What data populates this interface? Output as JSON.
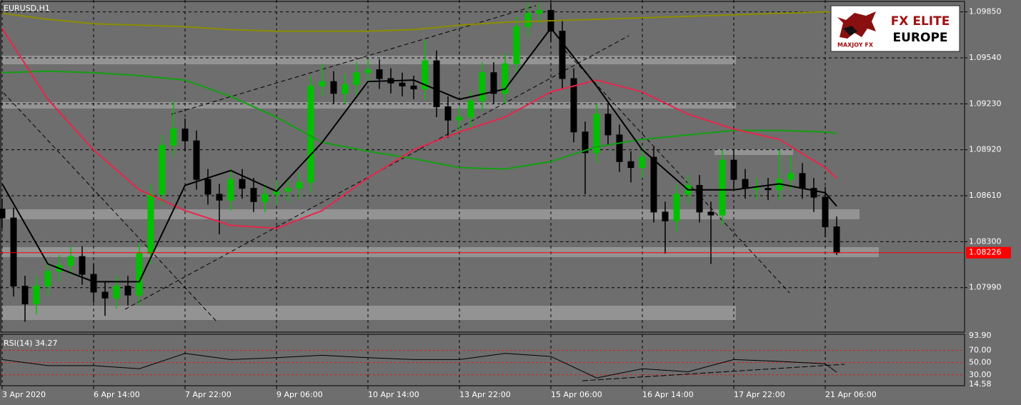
{
  "chart_data": {
    "type": "candlestick",
    "title": "EURUSD,H1",
    "background": "#6e6e6e",
    "xlim": [
      -0.75,
      336.75
    ],
    "xticks": [
      {
        "value": 0,
        "label": "3 Apr 2020"
      },
      {
        "value": 32,
        "label": "6 Apr 14:00"
      },
      {
        "value": 64,
        "label": "7 Apr 22:00"
      },
      {
        "value": 96,
        "label": "9 Apr 06:00"
      },
      {
        "value": 128,
        "label": "10 Apr 14:00"
      },
      {
        "value": 160,
        "label": "13 Apr 22:00"
      },
      {
        "value": 192,
        "label": "15 Apr 06:00"
      },
      {
        "value": 224,
        "label": "16 Apr 14:00"
      },
      {
        "value": 256,
        "label": "17 Apr 22:00"
      },
      {
        "value": 288,
        "label": "21 Apr 06:00"
      }
    ],
    "ylim": [
      1.0769,
      1.0993
    ],
    "yticks": [
      {
        "value": 1.0985,
        "label": "1.09850"
      },
      {
        "value": 1.0954,
        "label": "1.09540"
      },
      {
        "value": 1.0923,
        "label": "1.09230"
      },
      {
        "value": 1.0892,
        "label": "1.08920"
      },
      {
        "value": 1.0861,
        "label": "1.08610"
      },
      {
        "value": 1.083,
        "label": "1.08300"
      },
      {
        "value": 1.0799,
        "label": "1.07990"
      }
    ],
    "grid": true,
    "up_color": "#00c000",
    "down_color": "#000000",
    "x": [
      0,
      4,
      8,
      12,
      16,
      20,
      24,
      28,
      32,
      36,
      40,
      44,
      48,
      52,
      56,
      60,
      64,
      68,
      72,
      76,
      80,
      84,
      88,
      92,
      96,
      100,
      104,
      108,
      112,
      116,
      120,
      124,
      128,
      132,
      136,
      140,
      144,
      148,
      152,
      156,
      160,
      164,
      168,
      172,
      176,
      180,
      184,
      188,
      192,
      196,
      200,
      204,
      208,
      212,
      216,
      220,
      224,
      228,
      232,
      236,
      240,
      244,
      248,
      252,
      256,
      260,
      264,
      268,
      272,
      276,
      280,
      284,
      288,
      292
    ],
    "open": [
      1.0852,
      1.0846,
      1.08,
      1.0788,
      1.08,
      1.081,
      1.0814,
      1.082,
      1.0808,
      1.0796,
      1.0792,
      1.08,
      1.0794,
      1.0822,
      1.0862,
      1.0895,
      1.0906,
      1.0898,
      1.0872,
      1.0862,
      1.0858,
      1.0872,
      1.0866,
      1.0857,
      1.0862,
      1.0864,
      1.0866,
      1.087,
      1.0935,
      1.0938,
      1.093,
      1.0936,
      1.0944,
      1.0946,
      1.094,
      1.0937,
      1.0935,
      1.0933,
      1.0952,
      1.0921,
      1.0912,
      1.0914,
      1.0925,
      1.0944,
      1.093,
      1.095,
      1.0975,
      1.0984,
      1.0986,
      1.0972,
      1.094,
      1.0904,
      1.089,
      1.0916,
      1.0902,
      1.0884,
      1.088,
      1.0887,
      1.085,
      1.0844,
      1.0862,
      1.0868,
      1.085,
      1.0848,
      1.0885,
      1.0872,
      1.0866,
      1.0866,
      1.0865,
      1.0872,
      1.0876,
      1.0866,
      1.086,
      1.084
    ],
    "high": [
      1.0859,
      1.0853,
      1.0807,
      1.0807,
      1.0817,
      1.0821,
      1.0827,
      1.0827,
      1.0815,
      1.0803,
      1.0807,
      1.0807,
      1.0829,
      1.0869,
      1.0902,
      1.0925,
      1.0913,
      1.0905,
      1.0879,
      1.0869,
      1.0879,
      1.0879,
      1.0873,
      1.0869,
      1.0871,
      1.0873,
      1.0877,
      1.0942,
      1.095,
      1.0945,
      1.0943,
      1.0951,
      1.0953,
      1.0953,
      1.0947,
      1.0944,
      1.0942,
      1.0966,
      1.0959,
      1.0928,
      1.0921,
      1.0932,
      1.0951,
      1.0951,
      1.0957,
      1.0982,
      1.0991,
      1.0991,
      1.0991,
      1.0979,
      1.0947,
      1.0911,
      1.0923,
      1.0923,
      1.0909,
      1.0891,
      1.0894,
      1.0894,
      1.0857,
      1.0869,
      1.0875,
      1.0875,
      1.0857,
      1.0892,
      1.0892,
      1.0879,
      1.0873,
      1.0873,
      1.0892,
      1.0888,
      1.0883,
      1.0873,
      1.0867,
      1.0847
    ],
    "low": [
      1.0839,
      1.0793,
      1.0776,
      1.0781,
      1.0793,
      1.0803,
      1.0807,
      1.0801,
      1.0789,
      1.078,
      1.0785,
      1.0787,
      1.0787,
      1.0815,
      1.0855,
      1.0888,
      1.0891,
      1.0865,
      1.0855,
      1.0835,
      1.0851,
      1.0859,
      1.085,
      1.085,
      1.0855,
      1.0857,
      1.0859,
      1.0863,
      1.0928,
      1.0923,
      1.0923,
      1.0929,
      1.0937,
      1.0933,
      1.093,
      1.0928,
      1.0926,
      1.0926,
      1.0914,
      1.09,
      1.0905,
      1.0907,
      1.0918,
      1.0923,
      1.0923,
      1.0943,
      1.0968,
      1.0977,
      1.0965,
      1.0933,
      1.0897,
      1.0862,
      1.0883,
      1.0895,
      1.0877,
      1.087,
      1.0873,
      1.0843,
      1.0822,
      1.0837,
      1.0855,
      1.0843,
      1.0815,
      1.0841,
      1.0865,
      1.0859,
      1.0859,
      1.0858,
      1.0858,
      1.0865,
      1.0859,
      1.085,
      1.0833,
      1.0821
    ],
    "close": [
      1.0846,
      1.08,
      1.0788,
      1.08,
      1.081,
      1.0814,
      1.082,
      1.0808,
      1.0796,
      1.0792,
      1.08,
      1.0794,
      1.0822,
      1.0862,
      1.0895,
      1.0906,
      1.0898,
      1.0872,
      1.0862,
      1.0858,
      1.0872,
      1.0866,
      1.0857,
      1.0862,
      1.0864,
      1.0866,
      1.087,
      1.0935,
      1.0938,
      1.093,
      1.0936,
      1.0944,
      1.0946,
      1.094,
      1.0937,
      1.0935,
      1.0933,
      1.0952,
      1.0921,
      1.0912,
      1.0914,
      1.0925,
      1.0944,
      1.093,
      1.095,
      1.0975,
      1.0984,
      1.0986,
      1.0972,
      1.094,
      1.0904,
      1.089,
      1.0916,
      1.0902,
      1.0884,
      1.088,
      1.0887,
      1.085,
      1.0844,
      1.0862,
      1.0868,
      1.085,
      1.0848,
      1.0885,
      1.0872,
      1.0866,
      1.0866,
      1.0865,
      1.0872,
      1.0876,
      1.0866,
      1.086,
      1.084,
      1.08226
    ],
    "lines": [
      {
        "color": "#8c8c00",
        "x": [
          0,
          16,
          32,
          48,
          64,
          80,
          96,
          112,
          128,
          144,
          160,
          176,
          192,
          208,
          224,
          240,
          256,
          272,
          288,
          292
        ],
        "values": [
          1.0984,
          1.098,
          1.0977,
          1.0976,
          1.0975,
          1.0973,
          1.0972,
          1.0972,
          1.0972,
          1.0973,
          1.0976,
          1.0978,
          1.0979,
          1.098,
          1.0981,
          1.0982,
          1.0983,
          1.0984,
          1.0985,
          1.0985
        ]
      },
      {
        "color": "#10a010",
        "x": [
          0,
          16,
          32,
          48,
          64,
          80,
          96,
          112,
          128,
          144,
          160,
          176,
          192,
          208,
          224,
          240,
          256,
          272,
          288,
          292
        ],
        "values": [
          1.0944,
          1.0945,
          1.0944,
          1.0942,
          1.0939,
          1.0928,
          1.0914,
          1.0897,
          1.0891,
          1.0886,
          1.088,
          1.0879,
          1.0884,
          1.0894,
          1.0899,
          1.0902,
          1.0905,
          1.0905,
          1.0904,
          1.0903
        ]
      },
      {
        "color": "#e8264a",
        "x": [
          0,
          16,
          32,
          48,
          64,
          80,
          96,
          112,
          128,
          144,
          160,
          176,
          192,
          208,
          224,
          240,
          256,
          272,
          288,
          292
        ],
        "values": [
          1.0974,
          1.0926,
          1.0892,
          1.0865,
          1.0851,
          1.0841,
          1.0839,
          1.0851,
          1.0873,
          1.0892,
          1.0904,
          1.0914,
          1.0931,
          1.0939,
          1.0931,
          1.0916,
          1.0906,
          1.0899,
          1.088,
          1.0873
        ]
      },
      {
        "color": "#000000",
        "x": [
          0,
          16,
          32,
          48,
          64,
          80,
          96,
          112,
          128,
          144,
          160,
          176,
          192,
          208,
          224,
          240,
          256,
          272,
          288,
          292
        ],
        "values": [
          1.0869,
          1.0815,
          1.0803,
          1.0803,
          1.0868,
          1.0878,
          1.0864,
          1.0897,
          1.0938,
          1.0939,
          1.0926,
          1.0933,
          1.0974,
          1.0935,
          1.0892,
          1.0865,
          1.0865,
          1.0869,
          1.0863,
          1.0854
        ]
      }
    ],
    "last_price": 1.08226,
    "last_price_color": "#ff0000",
    "rsi": {
      "label": "RSI(14) 34.27",
      "color": "#000000",
      "level_color": "#d02020",
      "ylim": [
        14.58,
        93.9
      ],
      "yticks": [
        {
          "value": 93.9,
          "label": "93.90"
        },
        {
          "value": 70,
          "label": "70.00"
        },
        {
          "value": 50,
          "label": "50.00"
        },
        {
          "value": 30,
          "label": "30.00"
        },
        14.58
      ],
      "x": [
        0,
        16,
        32,
        48,
        64,
        80,
        96,
        112,
        128,
        144,
        160,
        176,
        192,
        208,
        224,
        240,
        256,
        272,
        288,
        292
      ],
      "values": [
        55,
        45,
        45,
        40,
        65,
        55,
        58,
        62,
        58,
        55,
        55,
        65,
        60,
        25,
        40,
        35,
        55,
        52,
        48,
        34.27
      ]
    },
    "logo": {
      "title": "FX ELITE",
      "subtitle": "EUROPE",
      "brand": "MAXJOY FX"
    }
  }
}
